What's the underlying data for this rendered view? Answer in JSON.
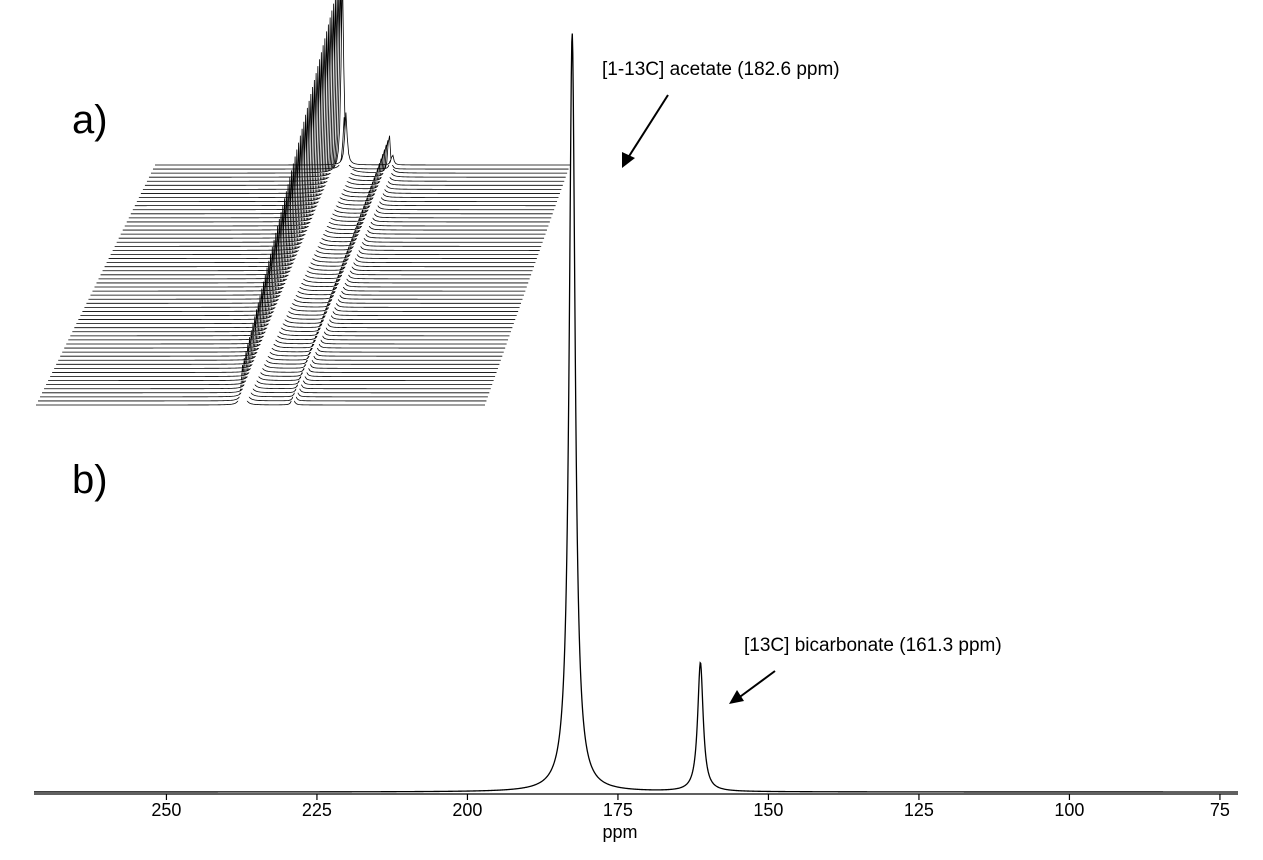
{
  "chart_data": [
    {
      "type": "line",
      "panel_label": "a)",
      "series": [
        {
          "values": [
            {
              "ppm": 182.6,
              "height": 1.0,
              "width": 0.55
            },
            {
              "ppm": 161.3,
              "height": 0.21,
              "width": 0.5
            }
          ]
        }
      ],
      "spectra_count": 60,
      "decay_rate": 0.045,
      "description_visible": false
    },
    {
      "type": "line",
      "panel_label": "b)",
      "xlabel": "ppm",
      "x_reversed": true,
      "xlim": [
        272,
        72
      ],
      "x_ticks": [
        250,
        225,
        200,
        175,
        150,
        125,
        100,
        75
      ],
      "peaks": [
        {
          "ppm": 182.6,
          "height": 1.0,
          "width": 0.6
        },
        {
          "ppm": 161.3,
          "height": 0.17,
          "width": 0.55
        }
      ],
      "annotations": [
        {
          "text": "[1-13C] acetate (182.6 ppm)",
          "ppm": 182.6
        },
        {
          "text": "[13C] bicarbonate (161.3 ppm)",
          "ppm": 161.3
        }
      ]
    }
  ],
  "colors": {
    "line": "#000000",
    "background": "#ffffff"
  }
}
